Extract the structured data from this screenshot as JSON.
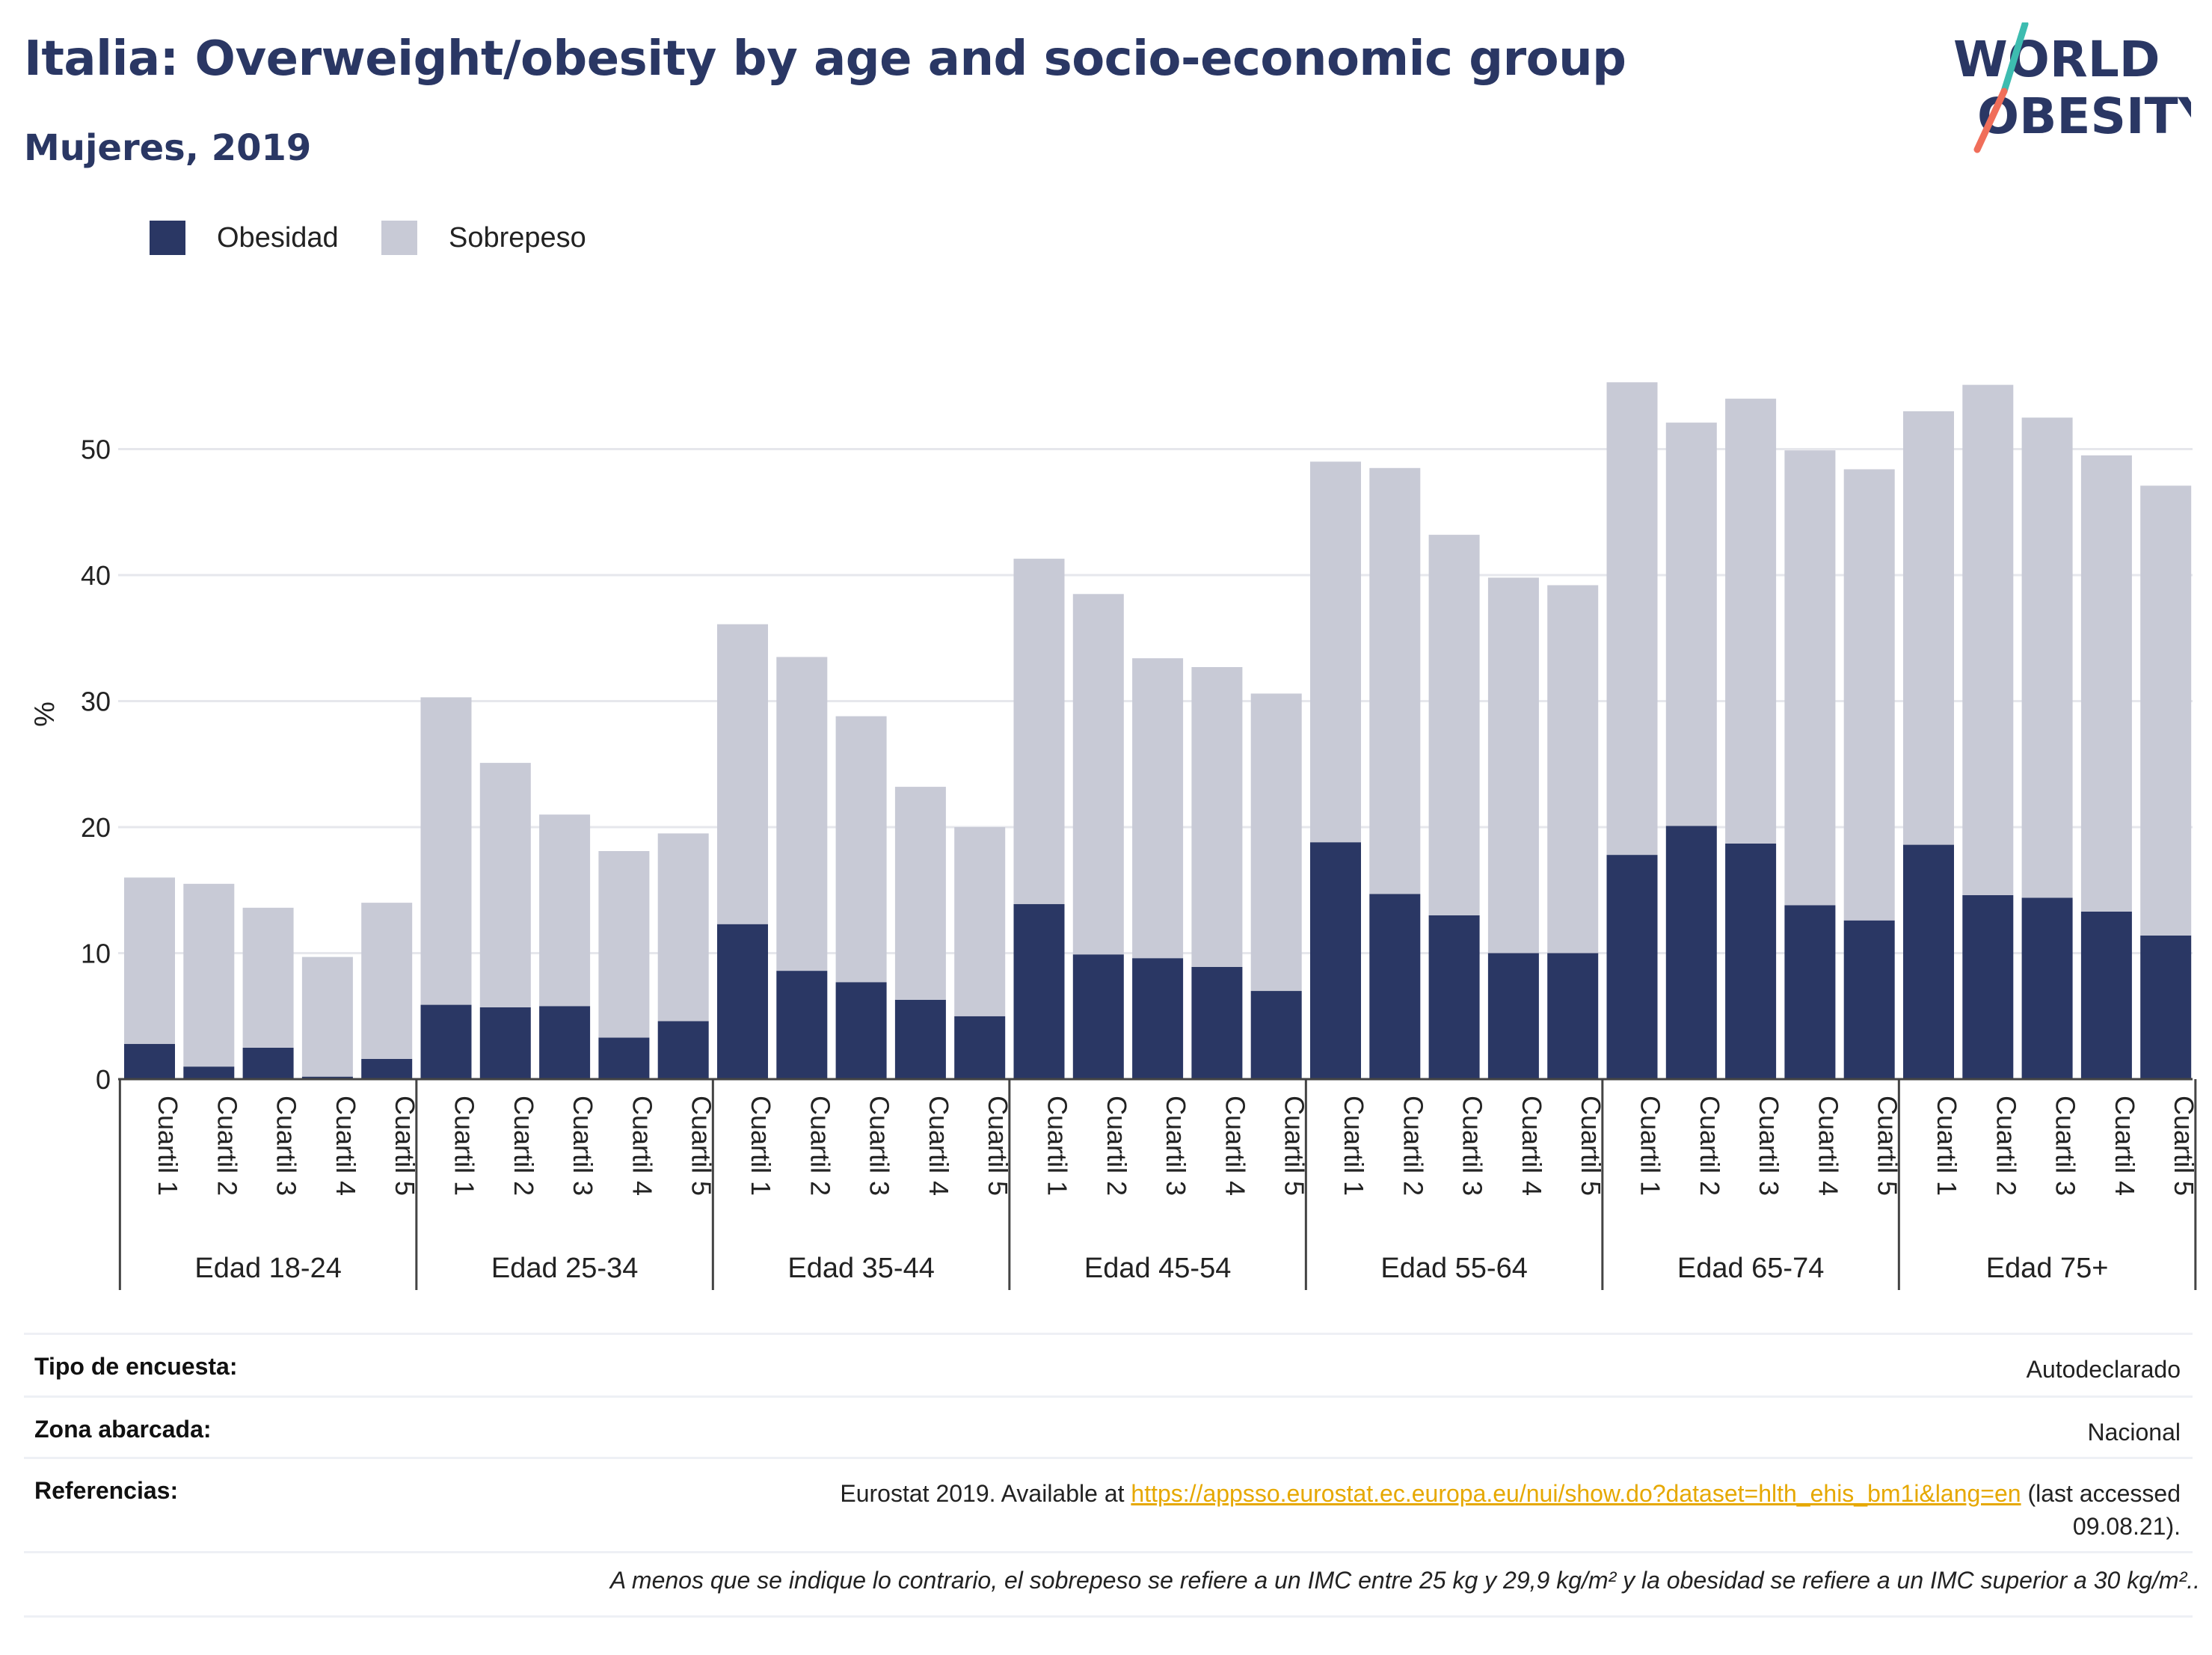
{
  "title": "Italia: Overweight/obesity by age and socio-economic group",
  "subtitle": "Mujeres, 2019",
  "logo": {
    "line1": "WORLD",
    "line2": "OBESITY"
  },
  "legend": [
    {
      "label": "Obesidad",
      "color": "#2a3764"
    },
    {
      "label": "Sobrepeso",
      "color": "#c8cad6"
    }
  ],
  "chart_data": {
    "type": "bar",
    "stacked": true,
    "ylabel": "%",
    "ylim": [
      0,
      60
    ],
    "yticks": [
      0,
      10,
      20,
      30,
      40,
      50
    ],
    "grid": true,
    "legend_position": "top-left",
    "groups": [
      "Edad 18-24",
      "Edad 25-34",
      "Edad 35-44",
      "Edad 45-54",
      "Edad 55-64",
      "Edad 65-74",
      "Edad 75+"
    ],
    "subcategories": [
      "Cuartil 1",
      "Cuartil 2",
      "Cuartil 3",
      "Cuartil 4",
      "Cuartil 5"
    ],
    "series": [
      {
        "name": "Obesidad",
        "color": "#2a3764",
        "values": [
          2.8,
          1.0,
          2.5,
          0.2,
          1.6,
          5.9,
          5.7,
          5.8,
          3.3,
          4.6,
          12.3,
          8.6,
          7.7,
          6.3,
          5.0,
          13.9,
          9.9,
          9.6,
          8.9,
          7.0,
          18.8,
          14.7,
          13.0,
          10.0,
          10.0,
          17.8,
          20.1,
          18.7,
          13.8,
          12.6,
          18.6,
          14.6,
          14.4,
          13.3,
          11.4
        ]
      },
      {
        "name": "Sobrepeso",
        "color": "#c8cad6",
        "values": [
          13.2,
          14.5,
          11.1,
          9.5,
          12.4,
          24.4,
          19.4,
          15.2,
          14.8,
          14.9,
          23.8,
          24.9,
          21.1,
          16.9,
          15.0,
          27.4,
          28.6,
          23.8,
          23.8,
          23.6,
          30.2,
          33.8,
          30.2,
          29.8,
          29.2,
          37.5,
          32.0,
          35.3,
          36.1,
          35.8,
          34.4,
          40.5,
          38.1,
          36.2,
          35.7
        ]
      }
    ]
  },
  "info": {
    "survey_label": "Tipo de encuesta:",
    "survey_value": "Autodeclarado",
    "area_label": "Zona abarcada:",
    "area_value": "Nacional",
    "ref_label": "Referencias:",
    "ref_prefix": "Eurostat 2019. Available at ",
    "ref_link": "https://appsso.eurostat.ec.europa.eu/nui/show.do?dataset=hlth_ehis_bm1i&lang=en",
    "ref_suffix": " (last accessed",
    "ref_date": "09.08.21)."
  },
  "footnote": "A menos que se indique lo contrario, el sobrepeso se refiere a un IMC entre 25 kg y 29,9 kg/m² y la obesidad se refiere a un IMC superior a 30 kg/m²..",
  "colors": {
    "brand": "#2a3764",
    "overweight": "#c8cad6",
    "logo_teal": "#3dbcb0",
    "logo_coral": "#f06e5a",
    "link": "#e6a800"
  }
}
